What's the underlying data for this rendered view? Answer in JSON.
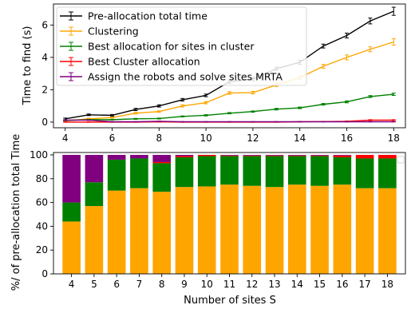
{
  "chart_data": [
    {
      "type": "line",
      "ylabel": "Time to find (s)",
      "xlabel": "",
      "xlim": [
        3.5,
        18.5
      ],
      "ylim": [
        -0.35,
        7.3
      ],
      "x_ticks": [
        4,
        6,
        8,
        10,
        12,
        14,
        16,
        18
      ],
      "y_ticks": [
        0,
        2,
        4,
        6
      ],
      "legend_position": "top-left",
      "x": [
        4,
        5,
        6,
        7,
        8,
        9,
        10,
        11,
        12,
        13,
        14,
        15,
        16,
        17,
        18
      ],
      "series": [
        {
          "name": "Pre-allocation total time",
          "color": "#000000",
          "values": [
            0.2,
            0.45,
            0.42,
            0.78,
            1.0,
            1.38,
            1.65,
            2.5,
            2.65,
            3.3,
            3.7,
            4.7,
            5.35,
            6.25,
            6.85
          ],
          "errors": [
            0.05,
            0.05,
            0.05,
            0.07,
            0.07,
            0.08,
            0.08,
            0.1,
            0.1,
            0.1,
            0.12,
            0.12,
            0.15,
            0.18,
            0.25
          ]
        },
        {
          "name": "Clustering",
          "color": "#ffa500",
          "values": [
            0.08,
            0.2,
            0.28,
            0.55,
            0.65,
            1.0,
            1.2,
            1.8,
            1.82,
            2.3,
            2.75,
            3.45,
            4.0,
            4.5,
            4.95
          ],
          "errors": [
            0.03,
            0.04,
            0.04,
            0.05,
            0.05,
            0.07,
            0.07,
            0.08,
            0.08,
            0.1,
            0.1,
            0.12,
            0.15,
            0.15,
            0.2
          ]
        },
        {
          "name": "Best allocation for sites in cluster",
          "color": "#008000",
          "values": [
            0.1,
            0.15,
            0.15,
            0.2,
            0.22,
            0.35,
            0.42,
            0.55,
            0.65,
            0.8,
            0.88,
            1.1,
            1.25,
            1.58,
            1.72
          ],
          "errors": [
            0.02,
            0.02,
            0.02,
            0.03,
            0.03,
            0.03,
            0.04,
            0.04,
            0.04,
            0.05,
            0.05,
            0.05,
            0.06,
            0.06,
            0.07
          ]
        },
        {
          "name": "Best Cluster allocation",
          "color": "#ff0000",
          "values": [
            0.0,
            0.0,
            0.0,
            0.0,
            0.02,
            0.0,
            0.0,
            0.0,
            0.0,
            0.0,
            0.02,
            0.03,
            0.05,
            0.12,
            0.12
          ],
          "errors": [
            0.01,
            0.01,
            0.01,
            0.01,
            0.01,
            0.01,
            0.01,
            0.01,
            0.01,
            0.01,
            0.01,
            0.01,
            0.02,
            0.03,
            0.03
          ]
        },
        {
          "name": "Assign the robots and solve sites MRTA",
          "color": "#800080",
          "values": [
            0.12,
            0.12,
            0.02,
            0.02,
            0.05,
            0.02,
            0.02,
            0.02,
            0.02,
            0.02,
            0.02,
            0.02,
            0.02,
            0.02,
            0.02
          ],
          "errors": [
            0.02,
            0.02,
            0.01,
            0.01,
            0.01,
            0.01,
            0.01,
            0.01,
            0.01,
            0.01,
            0.01,
            0.01,
            0.01,
            0.01,
            0.01
          ]
        }
      ]
    },
    {
      "type": "bar",
      "stacked": true,
      "xlabel": "Number of sites S",
      "ylabel": "%/ of pre-allocation total Time",
      "ylim": [
        0,
        102
      ],
      "y_ticks": [
        0,
        20,
        40,
        60,
        80,
        100
      ],
      "categories": [
        "4",
        "5",
        "6",
        "7",
        "8",
        "9",
        "10",
        "11",
        "12",
        "13",
        "14",
        "15",
        "16",
        "17",
        "18"
      ],
      "series": [
        {
          "color": "#ffa500",
          "values": [
            44,
            57,
            70,
            72,
            69,
            73,
            73.5,
            75,
            74,
            73,
            75,
            74,
            75,
            72,
            72
          ]
        },
        {
          "color": "#008000",
          "values": [
            16,
            20,
            26,
            25,
            24,
            25,
            25.5,
            24,
            25,
            26,
            24,
            25,
            23,
            25,
            25
          ]
        },
        {
          "color": "#ff0000",
          "values": [
            0,
            0,
            0,
            0,
            1,
            1,
            1,
            0.5,
            0.5,
            0.5,
            0.5,
            0.5,
            1.5,
            3,
            3
          ]
        },
        {
          "color": "#800080",
          "values": [
            40,
            23,
            4,
            3,
            6,
            1,
            0,
            0.5,
            0.5,
            0.5,
            0.5,
            0.5,
            0.5,
            0,
            0
          ]
        }
      ]
    }
  ]
}
